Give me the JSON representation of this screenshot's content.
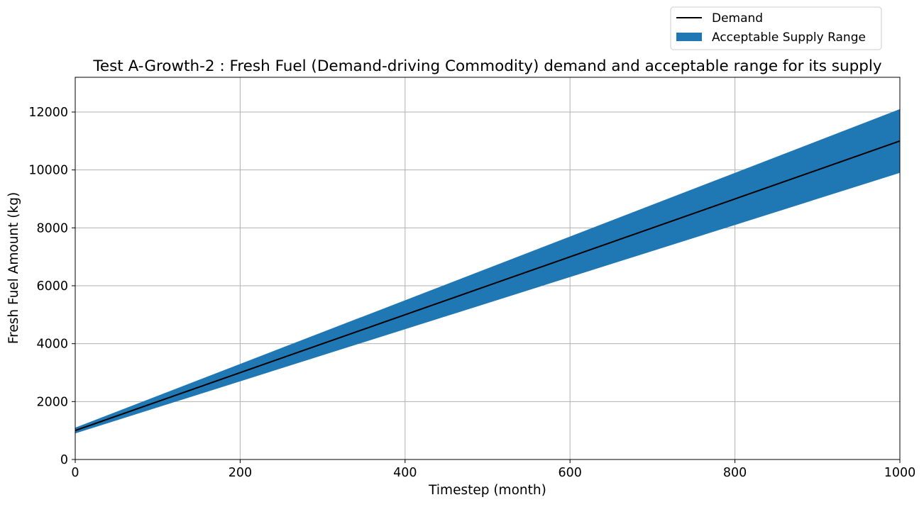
{
  "chart_data": {
    "type": "line",
    "title": "Test A-Growth-2 : Fresh Fuel (Demand-driving Commodity) demand and acceptable range for its supply",
    "xlabel": "Timestep (month)",
    "ylabel": "Fresh Fuel Amount (kg)",
    "xlim": [
      0,
      1000
    ],
    "ylim": [
      0,
      13200
    ],
    "xticks": [
      0,
      200,
      400,
      600,
      800,
      1000
    ],
    "xtick_labels": [
      "0",
      "200",
      "400",
      "600",
      "800",
      "1000"
    ],
    "yticks": [
      0,
      2000,
      4000,
      6000,
      8000,
      10000,
      12000
    ],
    "ytick_labels": [
      "0",
      "2000",
      "4000",
      "6000",
      "8000",
      "10000",
      "12000"
    ],
    "grid": true,
    "legend": {
      "placement": "top-right, above plot",
      "entries": [
        {
          "label": "Demand",
          "kind": "line",
          "color": "#000000"
        },
        {
          "label": "Acceptable Supply Range",
          "kind": "patch",
          "color": "#1f77b4"
        }
      ]
    },
    "series": [
      {
        "name": "Demand",
        "color": "#000000",
        "x": [
          0,
          1000
        ],
        "values": [
          1000,
          11000
        ]
      },
      {
        "name": "Acceptable Supply Range",
        "color": "#1f77b4",
        "x": [
          0,
          1000
        ],
        "upper": [
          1100,
          12100
        ],
        "lower": [
          900,
          9900
        ]
      }
    ]
  }
}
